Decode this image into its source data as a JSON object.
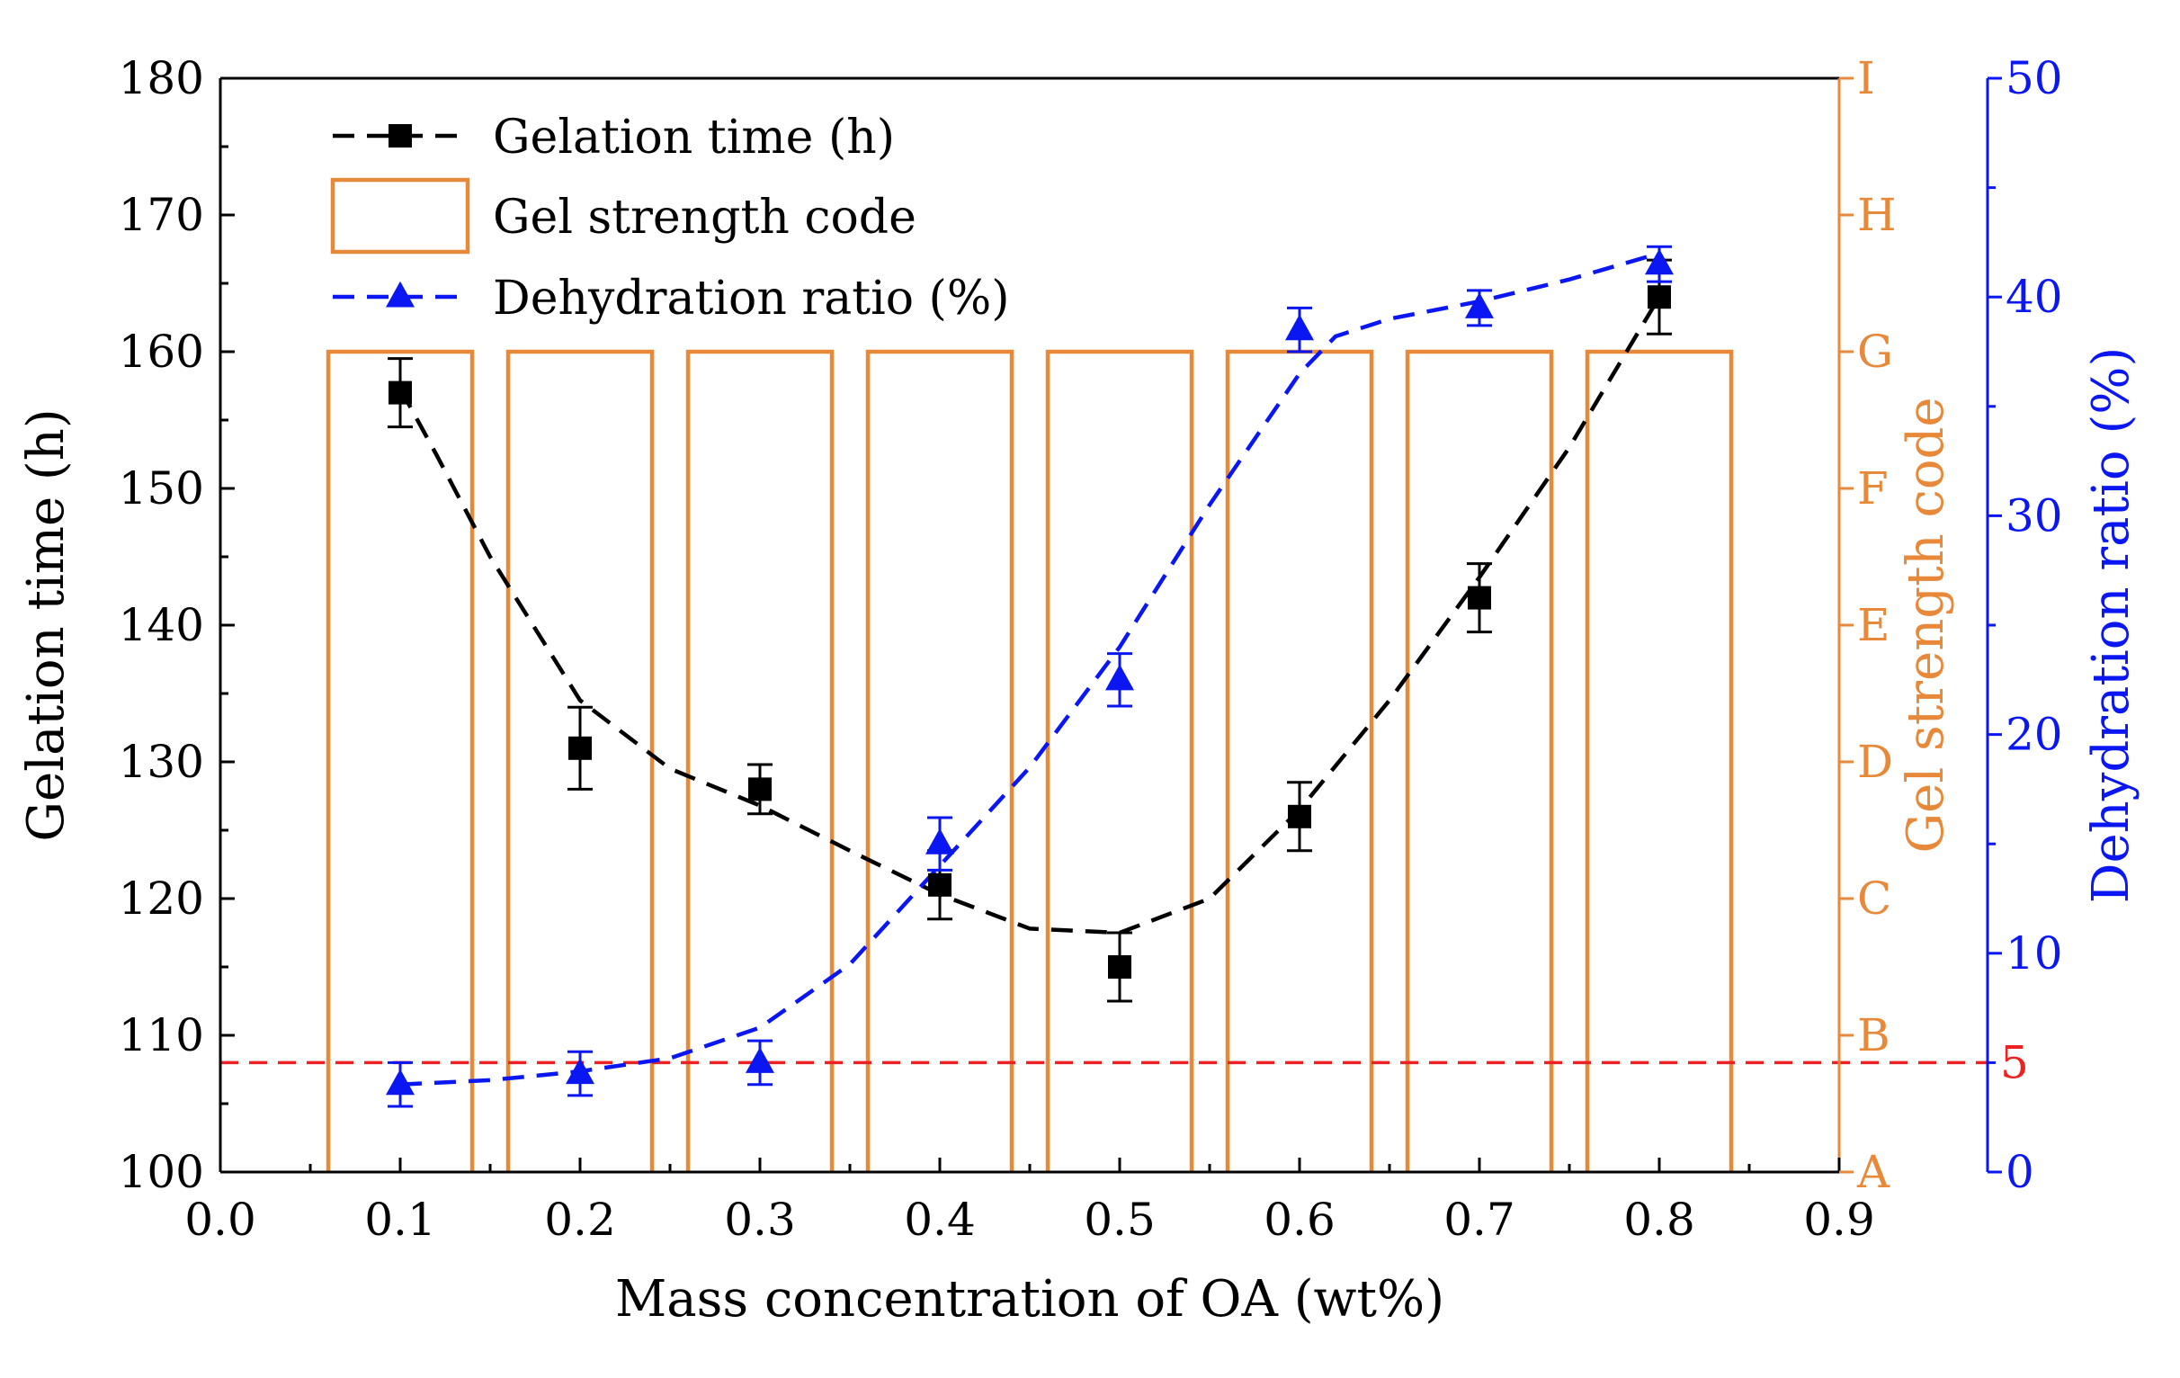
{
  "chart_data": {
    "type": "combo",
    "xlabel": "Mass concentration of OA (wt%)",
    "x_ticks": [
      "0.0",
      "0.1",
      "0.2",
      "0.3",
      "0.4",
      "0.5",
      "0.6",
      "0.7",
      "0.8",
      "0.9"
    ],
    "xlim": [
      0,
      0.9
    ],
    "y_left": {
      "label": "Gelation time (h)",
      "ticks": [
        "100",
        "110",
        "120",
        "130",
        "140",
        "150",
        "160",
        "170",
        "180"
      ],
      "lim": [
        100,
        180
      ]
    },
    "y_right_code": {
      "label": "Gel strength code",
      "ticks": [
        "A",
        "B",
        "C",
        "D",
        "E",
        "F",
        "G",
        "H",
        "I"
      ],
      "color": "#e8893a"
    },
    "y_right_dehydration": {
      "label": "Dehydration ratio (%)",
      "ticks": [
        "0",
        "10",
        "20",
        "30",
        "40",
        "50"
      ],
      "lim": [
        0,
        50
      ],
      "color": "#0a17f2"
    },
    "series": [
      {
        "name": "Gelation time (h)",
        "axis": "left",
        "kind": "scatter+trend",
        "color": "#000000",
        "x": [
          0.1,
          0.2,
          0.3,
          0.4,
          0.5,
          0.6,
          0.7,
          0.8
        ],
        "values": [
          157,
          131,
          128,
          121,
          115,
          126,
          142,
          164
        ],
        "errors": [
          2.5,
          3,
          1.8,
          2.5,
          2.5,
          2.5,
          2.5,
          2.7
        ],
        "trend": [
          [
            0.1,
            157.3
          ],
          [
            0.12,
            152.5
          ],
          [
            0.15,
            145
          ],
          [
            0.2,
            134.5
          ],
          [
            0.25,
            129.5
          ],
          [
            0.3,
            126.8
          ],
          [
            0.35,
            123.5
          ],
          [
            0.4,
            120.3
          ],
          [
            0.45,
            117.8
          ],
          [
            0.5,
            117.5
          ],
          [
            0.55,
            120
          ],
          [
            0.6,
            126.5
          ],
          [
            0.65,
            134.5
          ],
          [
            0.7,
            143.5
          ],
          [
            0.75,
            153
          ],
          [
            0.8,
            164
          ]
        ]
      },
      {
        "name": "Gel strength code",
        "axis": "right_code",
        "kind": "bar",
        "color": "#e8893a",
        "x": [
          0.1,
          0.2,
          0.3,
          0.4,
          0.5,
          0.6,
          0.7,
          0.8
        ],
        "values": [
          "G",
          "G",
          "G",
          "G",
          "G",
          "G",
          "G",
          "G"
        ]
      },
      {
        "name": "Dehydration ratio (%)",
        "axis": "right_dehydration",
        "kind": "scatter+trend",
        "color": "#0a17f2",
        "x": [
          0.1,
          0.2,
          0.3,
          0.4,
          0.5,
          0.6,
          0.7,
          0.8
        ],
        "values": [
          4,
          4.5,
          5,
          15,
          22.5,
          38.5,
          39.5,
          41.5
        ],
        "errors": [
          1,
          1,
          1,
          1.2,
          1.2,
          1,
          0.8,
          0.8
        ],
        "trend": [
          [
            0.1,
            4
          ],
          [
            0.15,
            4.2
          ],
          [
            0.2,
            4.6
          ],
          [
            0.25,
            5.2
          ],
          [
            0.3,
            6.6
          ],
          [
            0.35,
            9.5
          ],
          [
            0.4,
            14
          ],
          [
            0.45,
            18.5
          ],
          [
            0.5,
            24
          ],
          [
            0.55,
            30.5
          ],
          [
            0.6,
            36.5
          ],
          [
            0.62,
            38.2
          ],
          [
            0.65,
            39
          ],
          [
            0.7,
            39.8
          ],
          [
            0.75,
            40.8
          ],
          [
            0.8,
            42
          ]
        ]
      }
    ],
    "threshold": {
      "value": 5,
      "axis": "right_dehydration",
      "label": "5",
      "color": "#ee2222",
      "style": "dashed"
    },
    "legend": {
      "placement": "top-left",
      "entries": [
        "Gelation time (h)",
        "Gel strength code",
        "Dehydration ratio (%)"
      ]
    }
  }
}
